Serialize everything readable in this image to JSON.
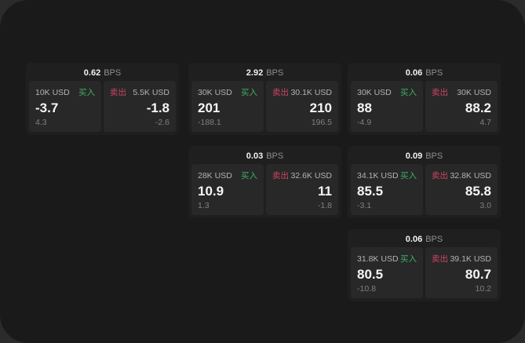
{
  "labels": {
    "bps": "BPS",
    "buy": "买入",
    "sell": "卖出"
  },
  "colors": {
    "buy_green": "#3fae68",
    "sell_red": "#cc4562",
    "panel_bg": "#1a1a1a",
    "card_bg": "#1f1f1f",
    "cell_bg": "#282828"
  },
  "cards": [
    {
      "bps": "0.62",
      "buy": {
        "amount": "10K USD",
        "value": "-3.7",
        "delta": "4.3"
      },
      "sell": {
        "amount": "5.5K USD",
        "value": "-1.8",
        "delta": "-2.6"
      }
    },
    {
      "bps": "2.92",
      "buy": {
        "amount": "30K USD",
        "value": "201",
        "delta": "-188.1"
      },
      "sell": {
        "amount": "30.1K USD",
        "value": "210",
        "delta": "196.5"
      }
    },
    {
      "bps": "0.06",
      "buy": {
        "amount": "30K USD",
        "value": "88",
        "delta": "-4.9"
      },
      "sell": {
        "amount": "30K USD",
        "value": "88.2",
        "delta": "4.7"
      }
    },
    {
      "bps": "0.03",
      "buy": {
        "amount": "28K USD",
        "value": "10.9",
        "delta": "1.3"
      },
      "sell": {
        "amount": "32.6K USD",
        "value": "11",
        "delta": "-1.8"
      }
    },
    {
      "bps": "0.09",
      "buy": {
        "amount": "34.1K USD",
        "value": "85.5",
        "delta": "-3.1"
      },
      "sell": {
        "amount": "32.8K USD",
        "value": "85.8",
        "delta": "3.0"
      }
    },
    {
      "bps": "0.06",
      "buy": {
        "amount": "31.8K USD",
        "value": "80.5",
        "delta": "-10.8"
      },
      "sell": {
        "amount": "39.1K USD",
        "value": "80.7",
        "delta": "10.2"
      }
    }
  ]
}
